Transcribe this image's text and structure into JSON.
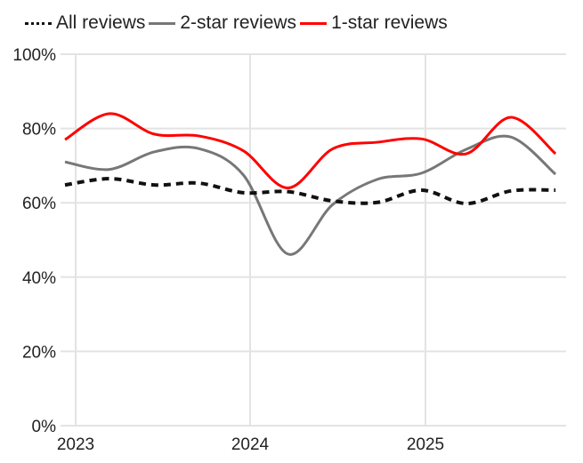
{
  "chart_data": {
    "type": "line",
    "title": "",
    "xlabel": "",
    "ylabel": "",
    "x": [
      2023.0,
      2023.25,
      2023.5,
      2023.75,
      2024.0,
      2024.25,
      2024.5,
      2024.75,
      2025.0,
      2025.25,
      2025.5,
      2025.75
    ],
    "x_ticks": [
      "2023",
      "2024",
      "2025"
    ],
    "y_ticks": [
      "0%",
      "20%",
      "40%",
      "60%",
      "80%",
      "100%"
    ],
    "ylim": [
      0,
      100
    ],
    "grid": true,
    "legend_position": "top",
    "series": [
      {
        "name": "All reviews",
        "style": "dotted",
        "color": "#111111",
        "values": [
          64.8,
          66.5,
          64.8,
          65.3,
          62.7,
          63.0,
          60.5,
          60.1,
          63.4,
          59.8,
          63.2,
          63.4
        ]
      },
      {
        "name": "2-star reviews",
        "style": "solid",
        "color": "#777777",
        "values": [
          71.0,
          69.0,
          73.7,
          74.6,
          67.5,
          46.2,
          59.5,
          66.3,
          68.0,
          74.4,
          77.7,
          67.7
        ]
      },
      {
        "name": "1-star reviews",
        "style": "solid",
        "color": "#ff0000",
        "values": [
          77.0,
          84.0,
          78.5,
          78.0,
          74.0,
          64.0,
          74.5,
          76.3,
          77.2,
          73.2,
          83.0,
          73.2
        ]
      }
    ]
  },
  "legend": {
    "items": [
      {
        "label": "All reviews"
      },
      {
        "label": "2-star reviews"
      },
      {
        "label": "1-star reviews"
      }
    ]
  }
}
